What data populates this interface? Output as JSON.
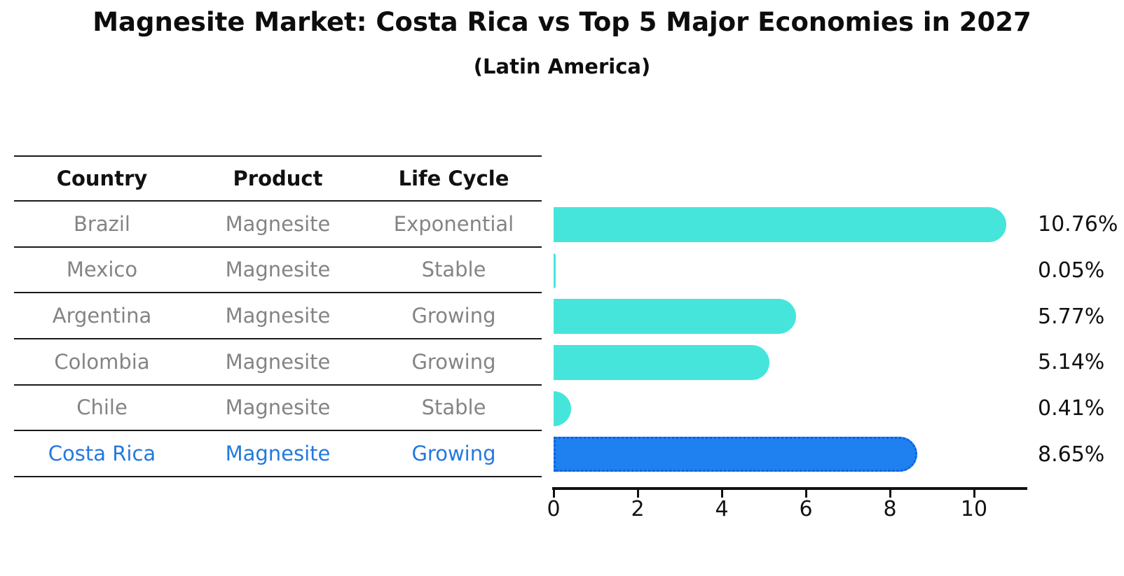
{
  "page": {
    "title": "Magnesite Market: Costa Rica vs Top 5 Major Economies in 2027",
    "subtitle": "(Latin America)"
  },
  "table": {
    "headers": [
      "Country",
      "Product",
      "Life Cycle"
    ],
    "rows": [
      {
        "country": "Brazil",
        "product": "Magnesite",
        "life_cycle": "Exponential",
        "highlight": false
      },
      {
        "country": "Mexico",
        "product": "Magnesite",
        "life_cycle": "Stable",
        "highlight": false
      },
      {
        "country": "Argentina",
        "product": "Magnesite",
        "life_cycle": "Growing",
        "highlight": false
      },
      {
        "country": "Colombia",
        "product": "Magnesite",
        "life_cycle": "Growing",
        "highlight": false
      },
      {
        "country": "Chile",
        "product": "Magnesite",
        "life_cycle": "Stable",
        "highlight": false
      },
      {
        "country": "Costa Rica",
        "product": "Magnesite",
        "life_cycle": "Growing",
        "highlight": true
      }
    ]
  },
  "chart_data": {
    "type": "bar",
    "orientation": "horizontal",
    "title": "Magnesite Market: Costa Rica vs Top 5 Major Economies in 2027",
    "subtitle": "(Latin America)",
    "categories": [
      "Brazil",
      "Mexico",
      "Argentina",
      "Colombia",
      "Chile",
      "Costa Rica"
    ],
    "values": [
      10.76,
      0.05,
      5.77,
      5.14,
      0.41,
      8.65
    ],
    "value_labels": [
      "10.76%",
      "0.05%",
      "5.77%",
      "5.14%",
      "0.41%",
      "8.65%"
    ],
    "x_ticks": [
      0,
      2,
      4,
      6,
      8,
      10
    ],
    "xlim": [
      0,
      11.3
    ],
    "grid": false,
    "legend": false,
    "highlight_index": 5
  },
  "colors": {
    "bar": "#45E5DC",
    "highlight_bar": "#1F80F0",
    "highlight_border": "#0E62D8",
    "highlight_text": "#2379DF",
    "text": "#111111",
    "muted_text": "#848484"
  }
}
